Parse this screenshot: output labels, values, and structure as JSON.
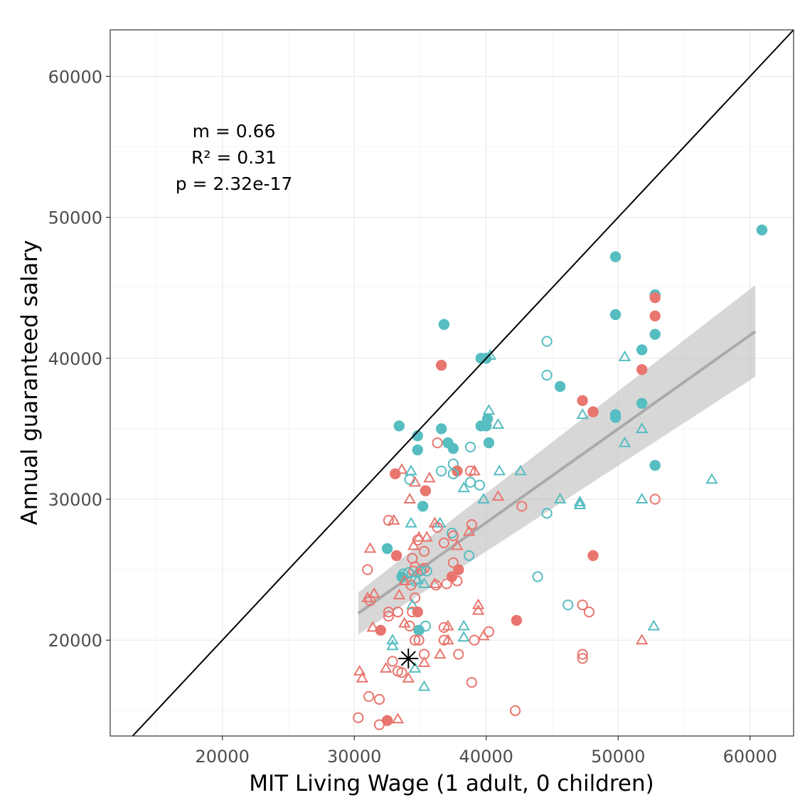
{
  "chart_data": {
    "type": "scatter",
    "xlabel": "MIT Living Wage (1 adult, 0 children)",
    "ylabel": "Annual guaranteed salary",
    "xlim": [
      11500,
      63300
    ],
    "ylim": [
      13200,
      63300
    ],
    "x_ticks": [
      20000,
      30000,
      40000,
      50000,
      60000
    ],
    "y_ticks": [
      20000,
      30000,
      40000,
      50000,
      60000
    ],
    "x_tick_labels": [
      "20000",
      "30000",
      "40000",
      "50000",
      "60000"
    ],
    "y_tick_labels": [
      "20000",
      "30000",
      "40000",
      "50000",
      "60000"
    ],
    "grid": true,
    "annotation": [
      "m = 0.66",
      "R² = 0.31",
      "p = 2.32e-17"
    ],
    "identity_line": true,
    "fit": {
      "color": "#aaaaaa",
      "band_color": "#bdbdbd",
      "x0": 30300,
      "y0": 21900,
      "lo0": 20400,
      "hi0": 23400,
      "x1": 60400,
      "y1": 41900,
      "lo1": 38700,
      "hi1": 45200
    },
    "colors": {
      "red": "#e8766f",
      "teal": "#56bdc1"
    },
    "highlight": {
      "x": 34100,
      "y": 18700
    },
    "points": [
      {
        "x": 60900,
        "y": 49100,
        "c": "teal",
        "s": "filled"
      },
      {
        "x": 49800,
        "y": 47200,
        "c": "teal",
        "s": "filled"
      },
      {
        "x": 52800,
        "y": 44500,
        "c": "teal",
        "s": "filled"
      },
      {
        "x": 52800,
        "y": 44300,
        "c": "red",
        "s": "filled"
      },
      {
        "x": 49800,
        "y": 43100,
        "c": "teal",
        "s": "filled"
      },
      {
        "x": 52800,
        "y": 43000,
        "c": "red",
        "s": "filled"
      },
      {
        "x": 36800,
        "y": 42400,
        "c": "teal",
        "s": "filled"
      },
      {
        "x": 52800,
        "y": 41700,
        "c": "teal",
        "s": "filled"
      },
      {
        "x": 44600,
        "y": 41200,
        "c": "teal",
        "s": "open"
      },
      {
        "x": 51800,
        "y": 40600,
        "c": "teal",
        "s": "filled"
      },
      {
        "x": 50500,
        "y": 40100,
        "c": "teal",
        "s": "triangle"
      },
      {
        "x": 39600,
        "y": 40000,
        "c": "teal",
        "s": "filled"
      },
      {
        "x": 40000,
        "y": 40000,
        "c": "teal",
        "s": "filled"
      },
      {
        "x": 40300,
        "y": 40200,
        "c": "teal",
        "s": "triangle"
      },
      {
        "x": 36600,
        "y": 39500,
        "c": "red",
        "s": "filled"
      },
      {
        "x": 51800,
        "y": 39200,
        "c": "red",
        "s": "filled"
      },
      {
        "x": 44600,
        "y": 38800,
        "c": "teal",
        "s": "open"
      },
      {
        "x": 45600,
        "y": 38000,
        "c": "teal",
        "s": "filled"
      },
      {
        "x": 47300,
        "y": 37000,
        "c": "red",
        "s": "filled"
      },
      {
        "x": 51800,
        "y": 36800,
        "c": "teal",
        "s": "filled"
      },
      {
        "x": 40200,
        "y": 36300,
        "c": "teal",
        "s": "triangle"
      },
      {
        "x": 48100,
        "y": 36200,
        "c": "red",
        "s": "filled"
      },
      {
        "x": 47300,
        "y": 36000,
        "c": "teal",
        "s": "triangle"
      },
      {
        "x": 49800,
        "y": 36000,
        "c": "teal",
        "s": "filled"
      },
      {
        "x": 49800,
        "y": 35800,
        "c": "teal",
        "s": "filled"
      },
      {
        "x": 40100,
        "y": 35700,
        "c": "teal",
        "s": "filled"
      },
      {
        "x": 40900,
        "y": 35300,
        "c": "teal",
        "s": "triangle"
      },
      {
        "x": 39600,
        "y": 35200,
        "c": "teal",
        "s": "filled"
      },
      {
        "x": 40000,
        "y": 35200,
        "c": "teal",
        "s": "filled"
      },
      {
        "x": 33400,
        "y": 35200,
        "c": "teal",
        "s": "filled"
      },
      {
        "x": 36600,
        "y": 35000,
        "c": "teal",
        "s": "filled"
      },
      {
        "x": 51800,
        "y": 35000,
        "c": "teal",
        "s": "triangle"
      },
      {
        "x": 34800,
        "y": 34500,
        "c": "teal",
        "s": "filled"
      },
      {
        "x": 36300,
        "y": 34000,
        "c": "red",
        "s": "open"
      },
      {
        "x": 37100,
        "y": 34000,
        "c": "teal",
        "s": "filled"
      },
      {
        "x": 40200,
        "y": 34000,
        "c": "teal",
        "s": "filled"
      },
      {
        "x": 50500,
        "y": 34000,
        "c": "teal",
        "s": "triangle"
      },
      {
        "x": 38800,
        "y": 33700,
        "c": "teal",
        "s": "open"
      },
      {
        "x": 37500,
        "y": 33600,
        "c": "teal",
        "s": "filled"
      },
      {
        "x": 34800,
        "y": 33500,
        "c": "teal",
        "s": "filled"
      },
      {
        "x": 37500,
        "y": 32500,
        "c": "teal",
        "s": "open"
      },
      {
        "x": 52800,
        "y": 32400,
        "c": "teal",
        "s": "filled"
      },
      {
        "x": 33600,
        "y": 32100,
        "c": "red",
        "s": "triangle"
      },
      {
        "x": 36600,
        "y": 32000,
        "c": "teal",
        "s": "open"
      },
      {
        "x": 37800,
        "y": 32000,
        "c": "red",
        "s": "filled"
      },
      {
        "x": 38800,
        "y": 32000,
        "c": "red",
        "s": "open"
      },
      {
        "x": 39100,
        "y": 32000,
        "c": "red",
        "s": "triangle"
      },
      {
        "x": 41000,
        "y": 32000,
        "c": "teal",
        "s": "triangle"
      },
      {
        "x": 42600,
        "y": 32000,
        "c": "teal",
        "s": "triangle"
      },
      {
        "x": 34300,
        "y": 32000,
        "c": "teal",
        "s": "triangle"
      },
      {
        "x": 33100,
        "y": 31800,
        "c": "red",
        "s": "filled"
      },
      {
        "x": 37500,
        "y": 31800,
        "c": "teal",
        "s": "open"
      },
      {
        "x": 35700,
        "y": 31500,
        "c": "red",
        "s": "triangle"
      },
      {
        "x": 34200,
        "y": 31400,
        "c": "teal",
        "s": "open"
      },
      {
        "x": 34600,
        "y": 31200,
        "c": "red",
        "s": "triangle"
      },
      {
        "x": 57100,
        "y": 31400,
        "c": "teal",
        "s": "triangle"
      },
      {
        "x": 38800,
        "y": 31200,
        "c": "teal",
        "s": "open"
      },
      {
        "x": 39500,
        "y": 31000,
        "c": "teal",
        "s": "open"
      },
      {
        "x": 38300,
        "y": 30800,
        "c": "teal",
        "s": "triangle"
      },
      {
        "x": 35400,
        "y": 30600,
        "c": "red",
        "s": "filled"
      },
      {
        "x": 40900,
        "y": 30200,
        "c": "red",
        "s": "triangle"
      },
      {
        "x": 34200,
        "y": 30000,
        "c": "red",
        "s": "triangle"
      },
      {
        "x": 39800,
        "y": 30000,
        "c": "teal",
        "s": "triangle"
      },
      {
        "x": 45600,
        "y": 30000,
        "c": "teal",
        "s": "triangle"
      },
      {
        "x": 51800,
        "y": 30000,
        "c": "teal",
        "s": "triangle"
      },
      {
        "x": 52800,
        "y": 30000,
        "c": "red",
        "s": "open"
      },
      {
        "x": 47100,
        "y": 29800,
        "c": "teal",
        "s": "triangle"
      },
      {
        "x": 47100,
        "y": 29600,
        "c": "teal",
        "s": "triangle"
      },
      {
        "x": 42700,
        "y": 29500,
        "c": "red",
        "s": "open"
      },
      {
        "x": 35200,
        "y": 29500,
        "c": "teal",
        "s": "filled"
      },
      {
        "x": 44600,
        "y": 29000,
        "c": "teal",
        "s": "open"
      },
      {
        "x": 32600,
        "y": 28500,
        "c": "red",
        "s": "open"
      },
      {
        "x": 33000,
        "y": 28500,
        "c": "red",
        "s": "triangle"
      },
      {
        "x": 34300,
        "y": 28300,
        "c": "teal",
        "s": "triangle"
      },
      {
        "x": 36100,
        "y": 28300,
        "c": "red",
        "s": "triangle"
      },
      {
        "x": 36500,
        "y": 28300,
        "c": "teal",
        "s": "triangle"
      },
      {
        "x": 38900,
        "y": 28200,
        "c": "red",
        "s": "open"
      },
      {
        "x": 36300,
        "y": 28000,
        "c": "red",
        "s": "open"
      },
      {
        "x": 38700,
        "y": 27700,
        "c": "red",
        "s": "triangle"
      },
      {
        "x": 37400,
        "y": 27600,
        "c": "teal",
        "s": "open"
      },
      {
        "x": 37500,
        "y": 27400,
        "c": "red",
        "s": "open"
      },
      {
        "x": 35500,
        "y": 27300,
        "c": "red",
        "s": "triangle"
      },
      {
        "x": 34800,
        "y": 27100,
        "c": "red",
        "s": "open"
      },
      {
        "x": 34900,
        "y": 27300,
        "c": "red",
        "s": "triangle"
      },
      {
        "x": 36800,
        "y": 26900,
        "c": "red",
        "s": "open"
      },
      {
        "x": 34500,
        "y": 26700,
        "c": "red",
        "s": "triangle"
      },
      {
        "x": 37800,
        "y": 26700,
        "c": "red",
        "s": "triangle"
      },
      {
        "x": 31200,
        "y": 26500,
        "c": "red",
        "s": "triangle"
      },
      {
        "x": 32500,
        "y": 26500,
        "c": "teal",
        "s": "filled"
      },
      {
        "x": 35300,
        "y": 26300,
        "c": "red",
        "s": "open"
      },
      {
        "x": 33200,
        "y": 26000,
        "c": "red",
        "s": "filled"
      },
      {
        "x": 38700,
        "y": 26000,
        "c": "teal",
        "s": "open"
      },
      {
        "x": 48100,
        "y": 26000,
        "c": "red",
        "s": "filled"
      },
      {
        "x": 34400,
        "y": 25800,
        "c": "red",
        "s": "open"
      },
      {
        "x": 37500,
        "y": 25500,
        "c": "red",
        "s": "open"
      },
      {
        "x": 34600,
        "y": 25200,
        "c": "red",
        "s": "open"
      },
      {
        "x": 35300,
        "y": 25100,
        "c": "red",
        "s": "open"
      },
      {
        "x": 35100,
        "y": 25000,
        "c": "red",
        "s": "open"
      },
      {
        "x": 35000,
        "y": 24900,
        "c": "teal",
        "s": "open"
      },
      {
        "x": 35500,
        "y": 24900,
        "c": "teal",
        "s": "open"
      },
      {
        "x": 31000,
        "y": 25000,
        "c": "red",
        "s": "open"
      },
      {
        "x": 37900,
        "y": 25000,
        "c": "red",
        "s": "filled"
      },
      {
        "x": 34500,
        "y": 24900,
        "c": "red",
        "s": "open"
      },
      {
        "x": 34100,
        "y": 24800,
        "c": "teal",
        "s": "open"
      },
      {
        "x": 33700,
        "y": 24700,
        "c": "teal",
        "s": "open"
      },
      {
        "x": 33600,
        "y": 24500,
        "c": "teal",
        "s": "filled"
      },
      {
        "x": 43900,
        "y": 24500,
        "c": "teal",
        "s": "open"
      },
      {
        "x": 37400,
        "y": 24500,
        "c": "red",
        "s": "filled"
      },
      {
        "x": 37800,
        "y": 24200,
        "c": "red",
        "s": "open"
      },
      {
        "x": 34600,
        "y": 24200,
        "c": "teal",
        "s": "open"
      },
      {
        "x": 33800,
        "y": 24200,
        "c": "red",
        "s": "triangle"
      },
      {
        "x": 34800,
        "y": 24300,
        "c": "teal",
        "s": "triangle"
      },
      {
        "x": 36100,
        "y": 24000,
        "c": "red",
        "s": "triangle"
      },
      {
        "x": 35300,
        "y": 24000,
        "c": "teal",
        "s": "triangle"
      },
      {
        "x": 37000,
        "y": 24000,
        "c": "red",
        "s": "open"
      },
      {
        "x": 36200,
        "y": 23900,
        "c": "red",
        "s": "open"
      },
      {
        "x": 34300,
        "y": 23900,
        "c": "red",
        "s": "open"
      },
      {
        "x": 31500,
        "y": 23300,
        "c": "red",
        "s": "triangle"
      },
      {
        "x": 31000,
        "y": 23000,
        "c": "red",
        "s": "triangle"
      },
      {
        "x": 33400,
        "y": 23200,
        "c": "red",
        "s": "triangle"
      },
      {
        "x": 34600,
        "y": 23000,
        "c": "red",
        "s": "open"
      },
      {
        "x": 34400,
        "y": 22500,
        "c": "teal",
        "s": "triangle"
      },
      {
        "x": 31200,
        "y": 22800,
        "c": "red",
        "s": "open"
      },
      {
        "x": 46200,
        "y": 22500,
        "c": "teal",
        "s": "open"
      },
      {
        "x": 47300,
        "y": 22500,
        "c": "red",
        "s": "open"
      },
      {
        "x": 39400,
        "y": 22500,
        "c": "red",
        "s": "triangle"
      },
      {
        "x": 39400,
        "y": 22100,
        "c": "red",
        "s": "triangle"
      },
      {
        "x": 32600,
        "y": 22000,
        "c": "red",
        "s": "open"
      },
      {
        "x": 33300,
        "y": 22000,
        "c": "red",
        "s": "open"
      },
      {
        "x": 34400,
        "y": 22000,
        "c": "red",
        "s": "open"
      },
      {
        "x": 34800,
        "y": 22000,
        "c": "red",
        "s": "filled"
      },
      {
        "x": 47800,
        "y": 22000,
        "c": "red",
        "s": "open"
      },
      {
        "x": 32600,
        "y": 21700,
        "c": "red",
        "s": "open"
      },
      {
        "x": 42300,
        "y": 21400,
        "c": "red",
        "s": "filled"
      },
      {
        "x": 33800,
        "y": 21200,
        "c": "red",
        "s": "triangle"
      },
      {
        "x": 34200,
        "y": 21000,
        "c": "red",
        "s": "open"
      },
      {
        "x": 37100,
        "y": 21000,
        "c": "red",
        "s": "triangle"
      },
      {
        "x": 35400,
        "y": 21000,
        "c": "teal",
        "s": "open"
      },
      {
        "x": 38300,
        "y": 21000,
        "c": "teal",
        "s": "triangle"
      },
      {
        "x": 52700,
        "y": 21000,
        "c": "teal",
        "s": "triangle"
      },
      {
        "x": 31400,
        "y": 20900,
        "c": "red",
        "s": "triangle"
      },
      {
        "x": 36800,
        "y": 20900,
        "c": "red",
        "s": "open"
      },
      {
        "x": 32000,
        "y": 20700,
        "c": "red",
        "s": "filled"
      },
      {
        "x": 34900,
        "y": 20700,
        "c": "teal",
        "s": "filled"
      },
      {
        "x": 40200,
        "y": 20600,
        "c": "red",
        "s": "open"
      },
      {
        "x": 38300,
        "y": 20200,
        "c": "teal",
        "s": "triangle"
      },
      {
        "x": 39800,
        "y": 20300,
        "c": "red",
        "s": "triangle"
      },
      {
        "x": 34900,
        "y": 20000,
        "c": "red",
        "s": "open"
      },
      {
        "x": 34600,
        "y": 20000,
        "c": "red",
        "s": "open"
      },
      {
        "x": 36800,
        "y": 20000,
        "c": "red",
        "s": "open"
      },
      {
        "x": 37100,
        "y": 20000,
        "c": "red",
        "s": "triangle"
      },
      {
        "x": 39100,
        "y": 20000,
        "c": "red",
        "s": "open"
      },
      {
        "x": 51800,
        "y": 20000,
        "c": "red",
        "s": "triangle"
      },
      {
        "x": 32900,
        "y": 20000,
        "c": "teal",
        "s": "triangle"
      },
      {
        "x": 32900,
        "y": 19600,
        "c": "teal",
        "s": "triangle"
      },
      {
        "x": 35300,
        "y": 19000,
        "c": "red",
        "s": "open"
      },
      {
        "x": 37900,
        "y": 19000,
        "c": "red",
        "s": "open"
      },
      {
        "x": 36500,
        "y": 19000,
        "c": "red",
        "s": "triangle"
      },
      {
        "x": 47300,
        "y": 19000,
        "c": "red",
        "s": "open"
      },
      {
        "x": 47300,
        "y": 18700,
        "c": "red",
        "s": "open"
      },
      {
        "x": 32900,
        "y": 18500,
        "c": "red",
        "s": "open"
      },
      {
        "x": 35300,
        "y": 18400,
        "c": "red",
        "s": "triangle"
      },
      {
        "x": 34600,
        "y": 18000,
        "c": "teal",
        "s": "triangle"
      },
      {
        "x": 32400,
        "y": 18000,
        "c": "red",
        "s": "triangle"
      },
      {
        "x": 30400,
        "y": 17800,
        "c": "red",
        "s": "triangle"
      },
      {
        "x": 33300,
        "y": 17800,
        "c": "red",
        "s": "open"
      },
      {
        "x": 33600,
        "y": 17700,
        "c": "red",
        "s": "open"
      },
      {
        "x": 30600,
        "y": 17300,
        "c": "red",
        "s": "triangle"
      },
      {
        "x": 34100,
        "y": 17300,
        "c": "red",
        "s": "triangle"
      },
      {
        "x": 38900,
        "y": 17000,
        "c": "red",
        "s": "open"
      },
      {
        "x": 35300,
        "y": 16700,
        "c": "teal",
        "s": "triangle"
      },
      {
        "x": 31100,
        "y": 16000,
        "c": "red",
        "s": "open"
      },
      {
        "x": 31900,
        "y": 15800,
        "c": "red",
        "s": "open"
      },
      {
        "x": 42200,
        "y": 15000,
        "c": "red",
        "s": "open"
      },
      {
        "x": 30300,
        "y": 14500,
        "c": "red",
        "s": "open"
      },
      {
        "x": 32500,
        "y": 14300,
        "c": "red",
        "s": "filled"
      },
      {
        "x": 33300,
        "y": 14400,
        "c": "red",
        "s": "triangle"
      },
      {
        "x": 31900,
        "y": 14000,
        "c": "red",
        "s": "open"
      }
    ]
  }
}
